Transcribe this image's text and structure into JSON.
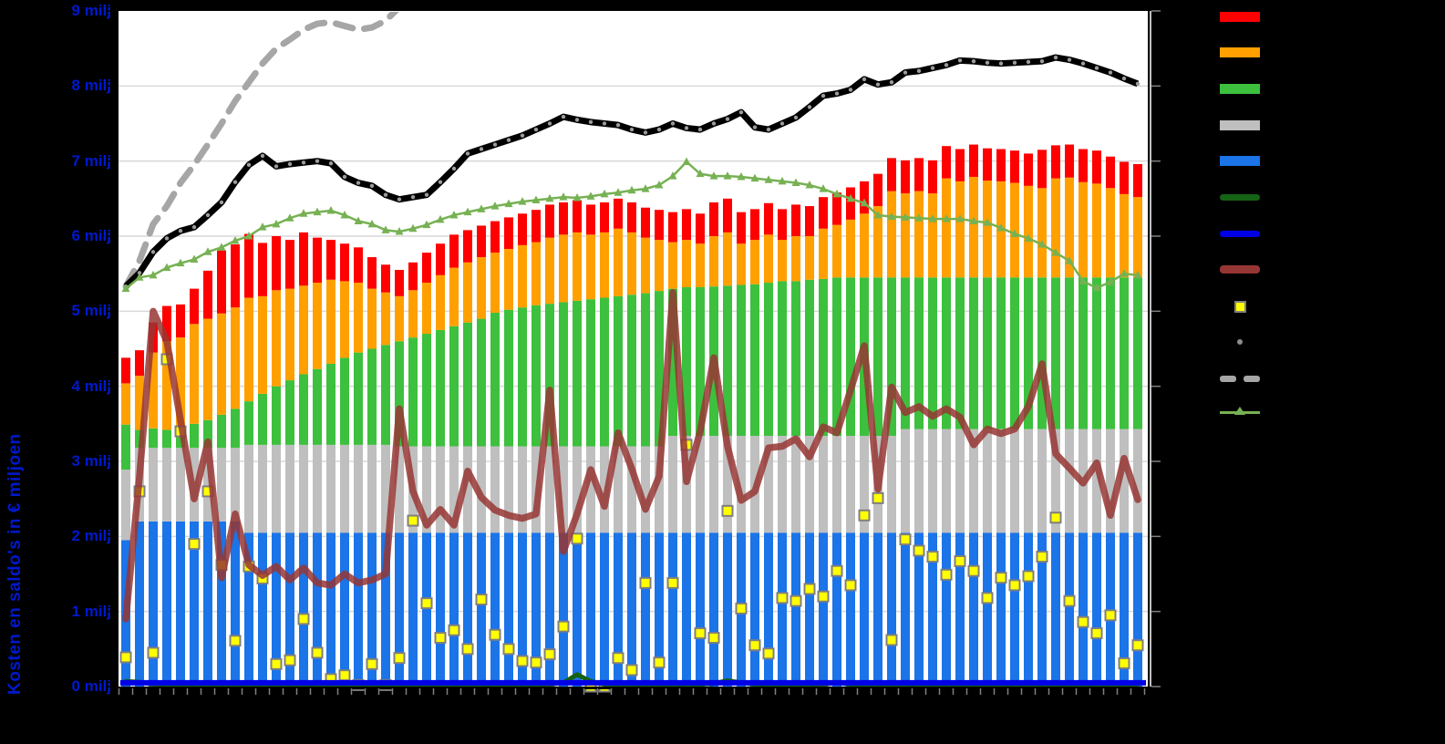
{
  "page": {
    "background": "#000000",
    "plot_background": "#ffffff"
  },
  "y_axis": {
    "title": "Kosten en saldo's in € miljoen",
    "tick_labels": [
      "0 milj",
      "1 milj",
      "2 milj",
      "3 milj",
      "4 milj",
      "5 milj",
      "6 milj",
      "7 milj",
      "8 milj",
      "9 milj"
    ],
    "label_color": "#0019cc"
  },
  "x_axis": {
    "labels_visible": false,
    "tick_count": 76
  },
  "legend": {
    "labels_visible": false,
    "items": [
      {
        "name": "bar-red",
        "swatch": "bar",
        "color": "#fe0000",
        "label": ""
      },
      {
        "name": "bar-orange",
        "swatch": "bar",
        "color": "#ffa000",
        "label": ""
      },
      {
        "name": "bar-green",
        "swatch": "bar",
        "color": "#3dc03d",
        "label": ""
      },
      {
        "name": "bar-gray",
        "swatch": "bar",
        "color": "#bfbfbf",
        "label": ""
      },
      {
        "name": "bar-blue",
        "swatch": "bar",
        "color": "#1b74e8",
        "label": ""
      },
      {
        "name": "line-darkgreen",
        "swatch": "line",
        "color": "#156315",
        "label": ""
      },
      {
        "name": "line-blue",
        "swatch": "line",
        "color": "#0000e6",
        "label": ""
      },
      {
        "name": "line-darkred",
        "swatch": "line",
        "color": "#963634",
        "label": ""
      },
      {
        "name": "marker-yellow-square",
        "swatch": "square",
        "color": "#ffff00",
        "label": ""
      },
      {
        "name": "marker-gray-dot",
        "swatch": "dot",
        "color": "#8c8c8c",
        "label": ""
      },
      {
        "name": "line-gray-dashed",
        "swatch": "dashes",
        "color": "#a6a6a6",
        "label": ""
      },
      {
        "name": "line-green-triangle",
        "swatch": "triangle",
        "color": "#76b153",
        "label": ""
      }
    ]
  },
  "chart_data": {
    "type": "combo: stacked bars + lines + scatter",
    "n_points": 75,
    "x_labels_visible": false,
    "ylim": [
      0,
      9
    ],
    "y_unit": "€ milj",
    "grid": true,
    "gridline_color": "#d9d9d9",
    "note": "bar series are cumulative stack tops in € milj (blue bottom, then gray, green, orange, red)",
    "bar_stack_tops": {
      "blue": [
        1.95,
        2.2,
        2.2,
        2.2,
        2.2,
        2.2,
        2.2,
        2.2,
        2.2,
        2.05,
        2.05,
        2.05,
        2.05,
        2.05,
        2.05,
        2.05,
        2.05,
        2.05,
        2.05,
        2.05,
        2.05,
        2.05,
        2.05,
        2.05,
        2.05,
        2.05,
        2.05,
        2.05,
        2.05,
        2.05,
        2.05,
        2.05,
        2.05,
        2.05,
        2.05,
        2.05,
        2.05,
        2.05,
        2.05,
        2.05,
        2.05,
        2.05,
        2.05,
        2.05,
        2.05,
        2.05,
        2.05,
        2.05,
        2.05,
        2.05,
        2.05,
        2.05,
        2.05,
        2.05,
        2.05,
        2.05,
        2.05,
        2.05,
        2.05,
        2.05,
        2.05,
        2.05,
        2.05,
        2.05,
        2.05,
        2.05,
        2.05,
        2.05,
        2.05,
        2.05,
        2.05,
        2.05,
        2.05,
        2.05,
        2.05
      ],
      "gray": [
        2.89,
        3.18,
        3.18,
        3.18,
        3.18,
        3.18,
        3.18,
        3.18,
        3.18,
        3.22,
        3.22,
        3.22,
        3.22,
        3.22,
        3.22,
        3.22,
        3.22,
        3.22,
        3.22,
        3.22,
        3.2,
        3.2,
        3.2,
        3.2,
        3.2,
        3.2,
        3.2,
        3.2,
        3.2,
        3.2,
        3.2,
        3.2,
        3.2,
        3.2,
        3.2,
        3.2,
        3.2,
        3.2,
        3.2,
        3.2,
        3.34,
        3.34,
        3.34,
        3.34,
        3.34,
        3.34,
        3.34,
        3.34,
        3.34,
        3.34,
        3.34,
        3.34,
        3.34,
        3.34,
        3.34,
        3.34,
        3.34,
        3.43,
        3.43,
        3.43,
        3.43,
        3.43,
        3.43,
        3.43,
        3.43,
        3.43,
        3.43,
        3.43,
        3.43,
        3.43,
        3.43,
        3.43,
        3.43,
        3.43,
        3.43
      ],
      "green": [
        3.49,
        3.42,
        3.44,
        3.42,
        3.45,
        3.5,
        3.55,
        3.62,
        3.7,
        3.8,
        3.9,
        4.0,
        4.08,
        4.16,
        4.23,
        4.3,
        4.38,
        4.45,
        4.5,
        4.55,
        4.6,
        4.65,
        4.7,
        4.75,
        4.8,
        4.85,
        4.9,
        4.98,
        5.02,
        5.05,
        5.08,
        5.1,
        5.12,
        5.14,
        5.16,
        5.18,
        5.2,
        5.22,
        5.24,
        5.27,
        5.3,
        5.32,
        5.32,
        5.33,
        5.34,
        5.35,
        5.36,
        5.38,
        5.4,
        5.4,
        5.42,
        5.43,
        5.45,
        5.45,
        5.45,
        5.45,
        5.45,
        5.45,
        5.45,
        5.45,
        5.45,
        5.45,
        5.45,
        5.45,
        5.45,
        5.45,
        5.45,
        5.45,
        5.45,
        5.45,
        5.45,
        5.45,
        5.45,
        5.45,
        5.45
      ],
      "orange": [
        4.04,
        4.14,
        4.45,
        4.6,
        4.65,
        4.83,
        4.9,
        4.97,
        5.05,
        5.18,
        5.2,
        5.28,
        5.3,
        5.34,
        5.38,
        5.42,
        5.4,
        5.38,
        5.3,
        5.25,
        5.2,
        5.28,
        5.38,
        5.48,
        5.58,
        5.65,
        5.72,
        5.78,
        5.83,
        5.88,
        5.92,
        5.98,
        6.02,
        6.05,
        6.02,
        6.05,
        6.1,
        6.05,
        5.98,
        5.95,
        5.92,
        5.95,
        5.9,
        6.0,
        6.05,
        5.9,
        5.95,
        6.02,
        5.95,
        6.0,
        6.0,
        6.1,
        6.15,
        6.22,
        6.3,
        6.4,
        6.6,
        6.57,
        6.6,
        6.57,
        6.77,
        6.73,
        6.79,
        6.74,
        6.73,
        6.71,
        6.67,
        6.64,
        6.77,
        6.78,
        6.72,
        6.7,
        6.64,
        6.56,
        6.52
      ],
      "red": [
        4.38,
        4.48,
        4.85,
        5.07,
        5.09,
        5.3,
        5.54,
        5.81,
        5.89,
        6.03,
        5.91,
        6.0,
        5.95,
        6.05,
        5.98,
        5.95,
        5.9,
        5.85,
        5.72,
        5.62,
        5.55,
        5.65,
        5.78,
        5.9,
        6.02,
        6.08,
        6.14,
        6.2,
        6.25,
        6.3,
        6.35,
        6.42,
        6.45,
        6.48,
        6.42,
        6.45,
        6.5,
        6.45,
        6.38,
        6.35,
        6.32,
        6.36,
        6.3,
        6.45,
        6.5,
        6.32,
        6.36,
        6.44,
        6.36,
        6.42,
        6.4,
        6.52,
        6.58,
        6.65,
        6.73,
        6.83,
        7.04,
        7.01,
        7.04,
        7.01,
        7.2,
        7.16,
        7.22,
        7.17,
        7.16,
        7.14,
        7.1,
        7.15,
        7.21,
        7.22,
        7.16,
        7.14,
        7.06,
        6.99,
        6.96
      ]
    },
    "lines": {
      "black_dotted": {
        "color": "#000000",
        "dot_color": "#9c9c9c",
        "width": 7,
        "values": [
          5.33,
          5.51,
          5.79,
          5.97,
          6.07,
          6.12,
          6.28,
          6.45,
          6.72,
          6.95,
          7.07,
          6.93,
          6.96,
          6.98,
          7.0,
          6.97,
          6.79,
          6.71,
          6.67,
          6.55,
          6.49,
          6.52,
          6.55,
          6.72,
          6.9,
          7.1,
          7.16,
          7.22,
          7.28,
          7.34,
          7.42,
          7.5,
          7.59,
          7.55,
          7.52,
          7.5,
          7.48,
          7.42,
          7.38,
          7.42,
          7.5,
          7.44,
          7.42,
          7.5,
          7.56,
          7.65,
          7.45,
          7.42,
          7.5,
          7.58,
          7.72,
          7.87,
          7.9,
          7.95,
          8.09,
          8.02,
          8.05,
          8.18,
          8.2,
          8.24,
          8.28,
          8.34,
          8.33,
          8.31,
          8.3,
          8.31,
          8.32,
          8.33,
          8.38,
          8.35,
          8.3,
          8.24,
          8.18,
          8.1,
          8.03
        ]
      },
      "gray_dashed": {
        "color": "#a6a6a6",
        "width": 7,
        "values": [
          5.33,
          5.67,
          6.16,
          6.4,
          6.71,
          6.95,
          7.22,
          7.5,
          7.8,
          8.05,
          8.3,
          8.5,
          8.62,
          8.75,
          8.83,
          8.85,
          8.8,
          8.75,
          8.78,
          8.87,
          9.05,
          null,
          null,
          null,
          null,
          null,
          null,
          null,
          null,
          null,
          null,
          null,
          null,
          null,
          null,
          null,
          null,
          null,
          null,
          null,
          null,
          null,
          null,
          null,
          null,
          null,
          null,
          null,
          null,
          null,
          null,
          null,
          null,
          null,
          null,
          null,
          null,
          null,
          null,
          null,
          null,
          null,
          null,
          null,
          null,
          null,
          null,
          null,
          null,
          null,
          null,
          null,
          null,
          null,
          null
        ]
      },
      "green_triangle": {
        "color": "#76b153",
        "width": 2.5,
        "values": [
          5.3,
          5.45,
          5.48,
          5.58,
          5.64,
          5.69,
          5.79,
          5.85,
          5.94,
          6.0,
          6.12,
          6.16,
          6.24,
          6.3,
          6.32,
          6.34,
          6.28,
          6.2,
          6.16,
          6.08,
          6.06,
          6.1,
          6.15,
          6.22,
          6.28,
          6.32,
          6.36,
          6.4,
          6.43,
          6.46,
          6.48,
          6.5,
          6.52,
          6.51,
          6.53,
          6.56,
          6.58,
          6.61,
          6.63,
          6.68,
          6.8,
          6.99,
          6.83,
          6.8,
          6.8,
          6.79,
          6.77,
          6.75,
          6.73,
          6.71,
          6.68,
          6.63,
          6.56,
          6.5,
          6.44,
          6.28,
          6.26,
          6.25,
          6.24,
          6.23,
          6.23,
          6.23,
          6.2,
          6.18,
          6.11,
          6.03,
          5.97,
          5.89,
          5.78,
          5.67,
          5.4,
          5.31,
          5.39,
          5.5,
          5.48
        ]
      },
      "dark_red": {
        "color": "#963634",
        "width": 7.5,
        "opacity": 0.85,
        "values": [
          0.9,
          2.8,
          5.0,
          4.6,
          3.55,
          2.5,
          3.26,
          1.45,
          2.3,
          1.62,
          1.48,
          1.6,
          1.42,
          1.58,
          1.38,
          1.35,
          1.5,
          1.38,
          1.42,
          1.5,
          3.7,
          2.6,
          2.15,
          2.36,
          2.15,
          2.87,
          2.52,
          2.35,
          2.28,
          2.24,
          2.3,
          3.95,
          1.8,
          2.3,
          2.89,
          2.4,
          3.38,
          2.9,
          2.36,
          2.8,
          5.25,
          2.73,
          3.4,
          4.38,
          3.2,
          2.48,
          2.6,
          3.18,
          3.2,
          3.3,
          3.06,
          3.46,
          3.38,
          3.95,
          4.54,
          2.63,
          3.99,
          3.65,
          3.73,
          3.6,
          3.7,
          3.59,
          3.22,
          3.43,
          3.37,
          3.43,
          3.73,
          4.3,
          3.1,
          2.91,
          2.71,
          2.98,
          2.28,
          3.04,
          2.49
        ]
      },
      "dark_green": {
        "color": "#156315",
        "width": 5,
        "values": [
          0.07,
          0.06,
          0.03,
          0.03,
          0.03,
          0.03,
          0.03,
          0.03,
          0.03,
          0.03,
          0.03,
          0.03,
          0.03,
          0.03,
          0.03,
          0.03,
          0.03,
          0.03,
          0.03,
          0.03,
          0.03,
          0.03,
          0.03,
          0.03,
          0.03,
          0.03,
          0.03,
          0.03,
          0.03,
          0.03,
          0.03,
          0.03,
          0.05,
          0.16,
          0.07,
          0.03,
          0.03,
          0.03,
          0.03,
          0.03,
          0.03,
          0.03,
          0.03,
          0.04,
          0.08,
          0.05,
          0.03,
          0.03,
          0.03,
          0.03,
          0.03,
          0.03,
          0.05,
          0.03,
          0.03,
          0.03,
          0.03,
          0.03,
          0.03,
          0.03,
          0.03,
          0.03,
          0.03,
          0.03,
          0.03,
          0.03,
          0.03,
          0.03,
          0.03,
          0.03,
          0.03,
          0.03,
          0.03,
          0.03,
          0.03
        ]
      },
      "blue_flat": {
        "color": "#0000e6",
        "width": 6,
        "value": 0.05
      }
    },
    "scatter_yellow_squares": {
      "fill": "#ffff00",
      "stroke": "#7f7f7f",
      "size": 11,
      "values": [
        0.39,
        2.6,
        0.45,
        4.36,
        3.4,
        1.9,
        2.6,
        1.62,
        0.61,
        1.6,
        1.44,
        0.3,
        0.35,
        0.9,
        0.45,
        0.1,
        0.15,
        0.02,
        0.3,
        0.02,
        0.38,
        2.21,
        1.11,
        0.65,
        0.75,
        0.5,
        1.16,
        0.69,
        0.5,
        0.34,
        0.32,
        0.43,
        0.8,
        1.97,
        0.0,
        0.0,
        0.38,
        0.22,
        1.38,
        0.32,
        1.38,
        3.22,
        0.71,
        0.65,
        2.34,
        1.04,
        0.55,
        0.44,
        1.18,
        1.14,
        1.3,
        1.2,
        1.54,
        1.35,
        2.28,
        2.51,
        0.62,
        1.96,
        1.81,
        1.73,
        1.49,
        1.67,
        1.54,
        1.18,
        1.45,
        1.35,
        1.47,
        1.73,
        2.25,
        1.14,
        0.86,
        0.71,
        0.95,
        0.31,
        0.55
      ]
    }
  }
}
